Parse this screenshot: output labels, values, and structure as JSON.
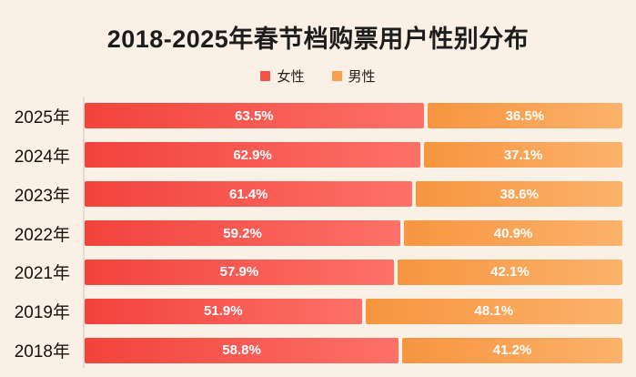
{
  "page": {
    "background_color": "#faf0e5"
  },
  "title": "2018-2025年春节档购票用户性别分布",
  "legend": {
    "items": [
      {
        "label": "女性",
        "color": "#f25349"
      },
      {
        "label": "男性",
        "color": "#f7a04e"
      }
    ]
  },
  "chart_data": {
    "type": "bar",
    "orientation": "horizontal",
    "stacked": true,
    "title": "2018-2025年春节档购票用户性别分布",
    "categories": [
      "2025年",
      "2024年",
      "2023年",
      "2022年",
      "2021年",
      "2019年",
      "2018年"
    ],
    "series": [
      {
        "name": "女性",
        "values": [
          63.5,
          62.9,
          61.4,
          59.2,
          57.9,
          51.9,
          58.8
        ],
        "color_gradient": [
          "#f2433c",
          "#fd7169"
        ]
      },
      {
        "name": "男性",
        "values": [
          36.5,
          37.1,
          38.6,
          40.9,
          42.1,
          48.1,
          41.2
        ],
        "color_gradient": [
          "#f79540",
          "#fbb26b"
        ]
      }
    ],
    "value_suffix": "%",
    "value_label_color": "#ffffff",
    "xlim": [
      0,
      100
    ],
    "grid": false,
    "legend_position": "top",
    "axis_line_color": "#e3dbce"
  }
}
